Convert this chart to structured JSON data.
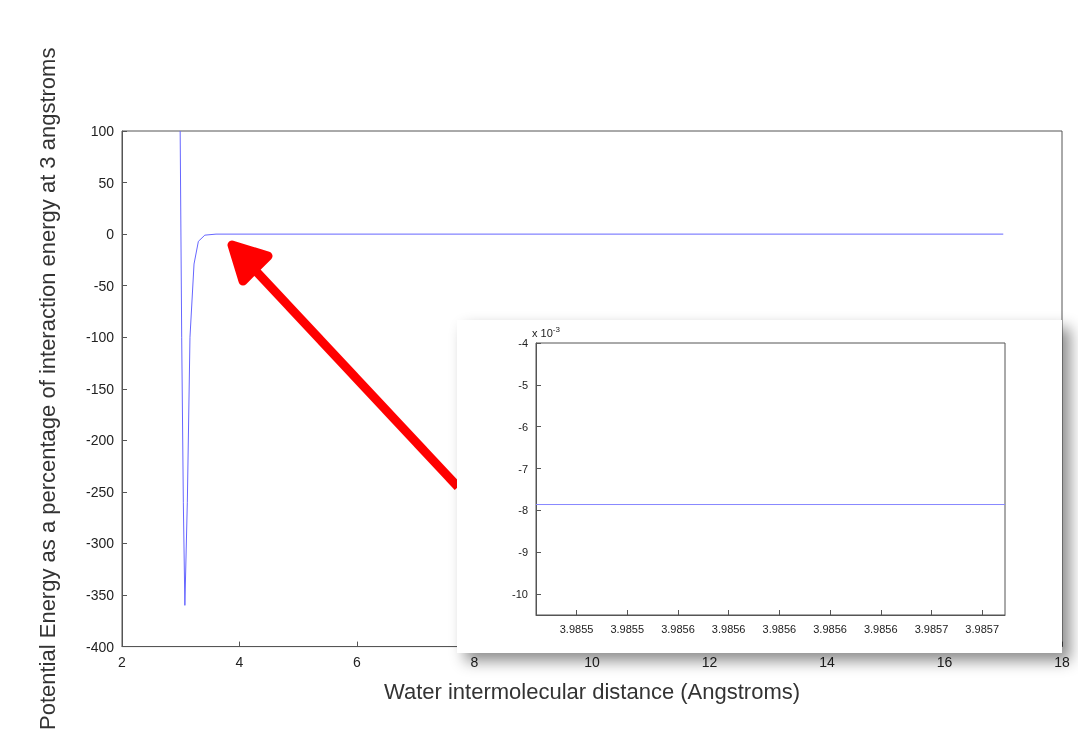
{
  "chart_data": [
    {
      "type": "line",
      "xlabel": "Water intermolecular distance (Angstroms)",
      "ylabel": "Potential Energy as a percentage of interaction energy at 3 angstroms",
      "xlim": [
        2,
        18
      ],
      "ylim": [
        -400,
        100
      ],
      "xticks": [
        2,
        4,
        6,
        8,
        10,
        12,
        14,
        16,
        18
      ],
      "yticks": [
        -400,
        -350,
        -300,
        -250,
        -200,
        -150,
        -100,
        -50,
        0,
        50,
        100
      ],
      "grid": false,
      "marker": "none",
      "line_style": "solid",
      "series": [
        {
          "color": "#6666ff",
          "x": [
            2.99,
            3.016,
            3.044,
            3.07,
            3.112,
            3.157,
            3.226,
            3.3,
            3.41,
            3.6,
            17.0
          ],
          "values": [
            100,
            -100,
            -260,
            -360,
            -260,
            -100,
            -29,
            -7,
            -1,
            0,
            0
          ]
        }
      ]
    },
    {
      "type": "line",
      "annotations": [
        "x 10$^{-3}$"
      ],
      "xlim": [
        3.985504,
        3.985689
      ],
      "ylim": [
        -10.5,
        -4
      ],
      "xticks": [
        {
          "value": 3.98552,
          "label": "3.9855"
        },
        {
          "value": 3.98554,
          "label": "3.9855"
        },
        {
          "value": 3.98556,
          "label": "3.9856"
        },
        {
          "value": 3.98558,
          "label": "3.9856"
        },
        {
          "value": 3.9856,
          "label": "3.9856"
        },
        {
          "value": 3.98562,
          "label": "3.9856"
        },
        {
          "value": 3.98564,
          "label": "3.9856"
        },
        {
          "value": 3.98566,
          "label": "3.9857"
        },
        {
          "value": 3.98568,
          "label": "3.9857"
        }
      ],
      "yticks": [
        -10,
        -9,
        -8,
        -7,
        -6,
        -5,
        -4
      ],
      "grid": false,
      "marker": "none",
      "line_style": "solid",
      "series": [
        {
          "color": "#8888ff",
          "x": [
            3.985504,
            3.985689
          ],
          "values": [
            -7.86,
            -7.86
          ]
        }
      ]
    }
  ]
}
